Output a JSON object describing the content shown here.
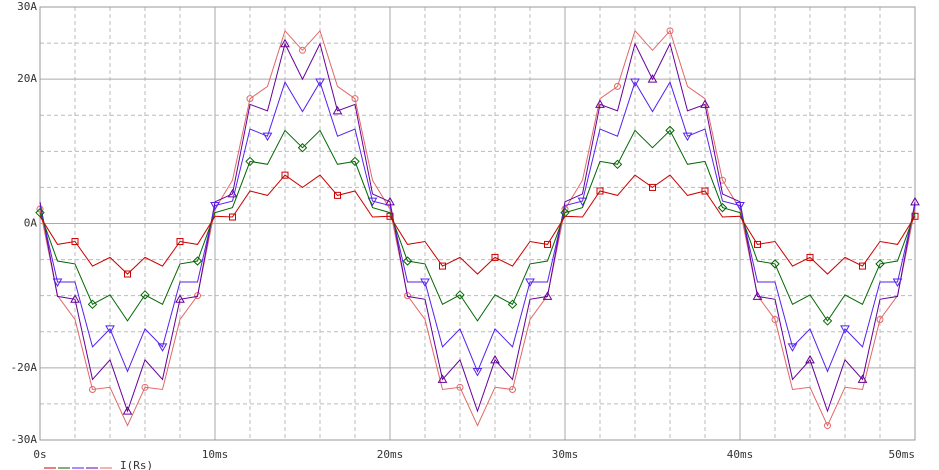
{
  "chart_data": {
    "type": "line",
    "legend_label": "I(Rs)",
    "x": [
      0,
      1,
      2,
      3,
      4,
      5,
      6,
      7,
      8,
      9,
      10,
      11,
      12,
      13,
      14,
      15,
      16,
      17,
      18,
      19,
      20,
      21,
      22,
      23,
      24,
      25,
      26,
      27,
      28,
      29,
      30,
      31,
      32,
      33,
      34,
      35,
      36,
      37,
      38,
      39,
      40,
      41,
      42,
      43,
      44,
      45,
      46,
      47,
      48,
      49,
      50
    ],
    "series": [
      {
        "color": "#e06868",
        "marker": "circle",
        "values": [
          2,
          -10,
          -13.3,
          -23,
          -22.7,
          -28,
          -22.7,
          -23,
          -13.3,
          -10,
          2,
          6,
          17.3,
          19,
          26.7,
          24,
          26.7,
          19,
          17.3,
          6,
          2,
          -10,
          -13.3,
          -23,
          -22.7,
          -28,
          -22.7,
          -23,
          -13.3,
          -10,
          2,
          6,
          17.3,
          19,
          26.7,
          24,
          26.7,
          19,
          17.3,
          6,
          2,
          -10,
          -13.3,
          -23,
          -22.7,
          -28,
          -22.7,
          -23,
          -13.3,
          -10,
          2
        ]
      },
      {
        "color": "#660099",
        "marker": "triangle-up",
        "values": [
          3,
          -10.1,
          -10.5,
          -21.6,
          -18.9,
          -26,
          -18.9,
          -21.6,
          -10.5,
          -10.1,
          3,
          4.1,
          16.5,
          15.6,
          24.9,
          20,
          24.9,
          15.6,
          16.5,
          4.1,
          3,
          -10.1,
          -10.5,
          -21.6,
          -18.9,
          -26,
          -18.9,
          -21.6,
          -10.5,
          -10.1,
          3,
          4.1,
          16.5,
          15.6,
          24.9,
          20,
          24.9,
          15.6,
          16.5,
          4.1,
          3,
          -10.1,
          -10.5,
          -21.6,
          -18.9,
          -26,
          -18.9,
          -21.6,
          -10.5,
          -10.1,
          3
        ]
      },
      {
        "color": "#5522ee",
        "marker": "triangle-down",
        "values": [
          2.5,
          -8.1,
          -8.1,
          -17.1,
          -14.6,
          -20.5,
          -14.6,
          -17.1,
          -8.1,
          -8.1,
          2.5,
          3.1,
          13.1,
          12.1,
          19.6,
          15.5,
          19.6,
          12.1,
          13.1,
          3.1,
          2.5,
          -8.1,
          -8.1,
          -17.1,
          -14.6,
          -20.5,
          -14.6,
          -17.1,
          -8.1,
          -8.1,
          2.5,
          3.1,
          13.1,
          12.1,
          19.6,
          15.5,
          19.6,
          12.1,
          13.1,
          3.1,
          2.5,
          -8.1,
          -8.1,
          -17.1,
          -14.6,
          -20.5,
          -14.6,
          -17.1,
          -8.1,
          -8.1,
          2.5
        ]
      },
      {
        "color": "#006600",
        "marker": "diamond",
        "values": [
          1.5,
          -5.2,
          -5.6,
          -11.2,
          -9.9,
          -13.5,
          -9.9,
          -11.2,
          -5.6,
          -5.2,
          1.5,
          2.2,
          8.6,
          8.2,
          12.9,
          10.5,
          12.9,
          8.2,
          8.6,
          2.2,
          1.5,
          -5.2,
          -5.6,
          -11.2,
          -9.9,
          -13.5,
          -9.9,
          -11.2,
          -5.6,
          -5.2,
          1.5,
          2.2,
          8.6,
          8.2,
          12.9,
          10.5,
          12.9,
          8.2,
          8.6,
          2.2,
          1.5,
          -5.2,
          -5.6,
          -11.2,
          -9.9,
          -13.5,
          -9.9,
          -11.2,
          -5.6,
          -5.2,
          1.5
        ]
      },
      {
        "color": "#cc0000",
        "marker": "square",
        "values": [
          1,
          -2.9,
          -2.5,
          -5.9,
          -4.7,
          -7,
          -4.7,
          -5.9,
          -2.5,
          -2.9,
          1,
          0.9,
          4.5,
          3.9,
          6.7,
          5,
          6.7,
          3.9,
          4.5,
          0.9,
          1,
          -2.9,
          -2.5,
          -5.9,
          -4.7,
          -7,
          -4.7,
          -5.9,
          -2.5,
          -2.9,
          1,
          0.9,
          4.5,
          3.9,
          6.7,
          5,
          6.7,
          3.9,
          4.5,
          0.9,
          1,
          -2.9,
          -2.5,
          -5.9,
          -4.7,
          -7,
          -4.7,
          -5.9,
          -2.5,
          -2.9,
          1
        ]
      }
    ],
    "xlim": [
      0,
      50
    ],
    "xticks": [
      {
        "value": 0,
        "label": "0s"
      },
      {
        "value": 10,
        "label": "10ms"
      },
      {
        "value": 20,
        "label": "20ms"
      },
      {
        "value": 30,
        "label": "30ms"
      },
      {
        "value": 40,
        "label": "40ms"
      },
      {
        "value": 50,
        "label": "50ms"
      }
    ],
    "x_minor_ticks": [
      2,
      4,
      6,
      8,
      12,
      14,
      16,
      18,
      22,
      24,
      26,
      28,
      32,
      34,
      36,
      38,
      42,
      44,
      46,
      48
    ],
    "ylim": [
      -30,
      30
    ],
    "yticks": [
      {
        "value": -30,
        "label": "-30A"
      },
      {
        "value": -20,
        "label": "-20A"
      },
      {
        "value": 0,
        "label": "0A"
      },
      {
        "value": 20,
        "label": "20A"
      },
      {
        "value": 30,
        "label": "30A"
      }
    ],
    "y_minor_ticks": [
      -25,
      -15,
      -10,
      -5,
      5,
      10,
      15,
      25
    ],
    "grid": true
  }
}
